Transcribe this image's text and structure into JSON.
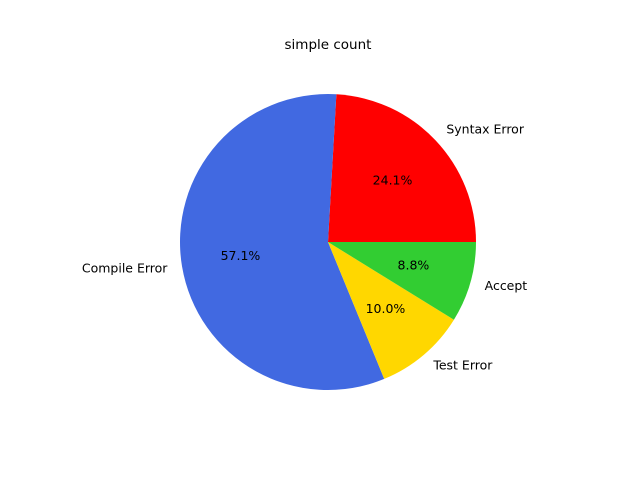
{
  "chart_data": {
    "type": "pie",
    "title": "simple count",
    "start_angle_deg": 0,
    "direction": "counterclockwise",
    "slices": [
      {
        "label": "Syntax Error",
        "percent": 24.1,
        "percent_label": "24.1%",
        "color": "#ff0000"
      },
      {
        "label": "Compile Error",
        "percent": 57.1,
        "percent_label": "57.1%",
        "color": "#4169e1"
      },
      {
        "label": "Test Error",
        "percent": 10.0,
        "percent_label": "10.0%",
        "color": "#ffd700"
      },
      {
        "label": "Accept",
        "percent": 8.8,
        "percent_label": "8.8%",
        "color": "#32cd32"
      }
    ]
  }
}
